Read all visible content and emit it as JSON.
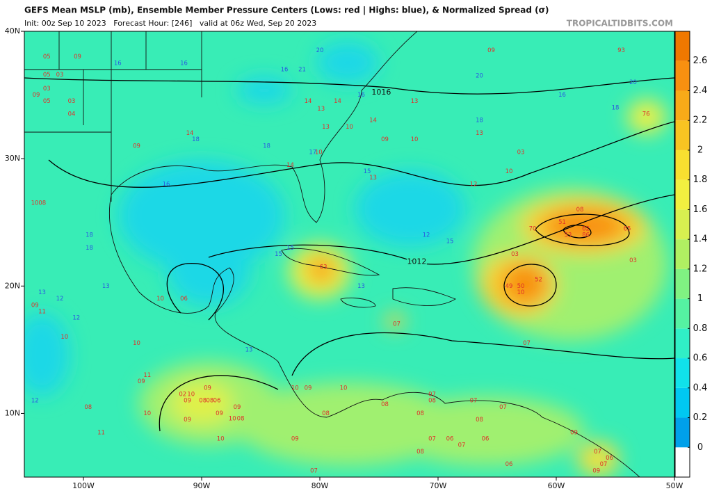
{
  "header": {
    "title": "GEFS Mean MSLP (mb), Ensemble Member Pressure Centers (Lows: red | Highs: blue), & Normalized Spread (σ)",
    "subtitle": "Init: 00z Sep 10 2023   Forecast Hour: [246]   valid at 06z Wed, Sep 20 2023",
    "source": "TROPICALTIDBITS.COM"
  },
  "map": {
    "xlim": [
      -105,
      -50
    ],
    "ylim": [
      5,
      40
    ],
    "xticks": [
      {
        "value": -100,
        "label": "100W"
      },
      {
        "value": -90,
        "label": "90W"
      },
      {
        "value": -80,
        "label": "80W"
      },
      {
        "value": -70,
        "label": "70W"
      },
      {
        "value": -60,
        "label": "60W"
      },
      {
        "value": -50,
        "label": "50W"
      }
    ],
    "yticks": [
      {
        "value": 10,
        "label": "10N"
      },
      {
        "value": 20,
        "label": "20N"
      },
      {
        "value": 30,
        "label": "30N"
      },
      {
        "value": 40,
        "label": "40N"
      }
    ],
    "low_color": "#e0302a",
    "high_color": "#2a5ae0",
    "isobar_labels": [
      {
        "label": "1016",
        "lon": -74.8,
        "lat": 35.2
      },
      {
        "label": "1012",
        "lon": -71.8,
        "lat": 21.9
      }
    ],
    "centers": [
      {
        "label": "05",
        "lon": -103.1,
        "lat": 38.0,
        "type": "low"
      },
      {
        "label": "09",
        "lon": -100.5,
        "lat": 38.0,
        "type": "low"
      },
      {
        "label": "05",
        "lon": -103.1,
        "lat": 36.6,
        "type": "low"
      },
      {
        "label": "03",
        "lon": -102.0,
        "lat": 36.6,
        "type": "low"
      },
      {
        "label": "03",
        "lon": -103.1,
        "lat": 35.5,
        "type": "low"
      },
      {
        "label": "09",
        "lon": -104.0,
        "lat": 35.0,
        "type": "low"
      },
      {
        "label": "05",
        "lon": -103.1,
        "lat": 34.5,
        "type": "low"
      },
      {
        "label": "03",
        "lon": -101.0,
        "lat": 34.5,
        "type": "low"
      },
      {
        "label": "04",
        "lon": -101.0,
        "lat": 33.5,
        "type": "low"
      },
      {
        "label": "09",
        "lon": -95.5,
        "lat": 31.0,
        "type": "low"
      },
      {
        "label": "14",
        "lon": -91.0,
        "lat": 32.0,
        "type": "low"
      },
      {
        "label": "14",
        "lon": -81.0,
        "lat": 34.5,
        "type": "low"
      },
      {
        "label": "13",
        "lon": -79.9,
        "lat": 33.9,
        "type": "low"
      },
      {
        "label": "14",
        "lon": -78.5,
        "lat": 34.5,
        "type": "low"
      },
      {
        "label": "13",
        "lon": -79.5,
        "lat": 32.5,
        "type": "low"
      },
      {
        "label": "10",
        "lon": -77.5,
        "lat": 32.5,
        "type": "low"
      },
      {
        "label": "14",
        "lon": -75.5,
        "lat": 33.0,
        "type": "low"
      },
      {
        "label": "09",
        "lon": -74.5,
        "lat": 31.5,
        "type": "low"
      },
      {
        "label": "10",
        "lon": -72.0,
        "lat": 31.5,
        "type": "low"
      },
      {
        "label": "13",
        "lon": -72.0,
        "lat": 34.5,
        "type": "low"
      },
      {
        "label": "10",
        "lon": -80.1,
        "lat": 30.5,
        "type": "low"
      },
      {
        "label": "14",
        "lon": -82.5,
        "lat": 29.5,
        "type": "low"
      },
      {
        "label": "13",
        "lon": -75.5,
        "lat": 28.5,
        "type": "low"
      },
      {
        "label": "12",
        "lon": -67.0,
        "lat": 28.0,
        "type": "low"
      },
      {
        "label": "10",
        "lon": -64.0,
        "lat": 29.0,
        "type": "low"
      },
      {
        "label": "03",
        "lon": -63.0,
        "lat": 30.5,
        "type": "low"
      },
      {
        "label": "13",
        "lon": -66.5,
        "lat": 32.0,
        "type": "low"
      },
      {
        "label": "09",
        "lon": -65.5,
        "lat": 38.5,
        "type": "low"
      },
      {
        "label": "93",
        "lon": -54.5,
        "lat": 38.5,
        "type": "low"
      },
      {
        "label": "76",
        "lon": -52.4,
        "lat": 33.5,
        "type": "low"
      },
      {
        "label": "08",
        "lon": -58.0,
        "lat": 26.0,
        "type": "low"
      },
      {
        "label": "51",
        "lon": -59.5,
        "lat": 25.0,
        "type": "low"
      },
      {
        "label": "62",
        "lon": -57.5,
        "lat": 24.5,
        "type": "low"
      },
      {
        "label": "86",
        "lon": -57.5,
        "lat": 24.0,
        "type": "low"
      },
      {
        "label": "53",
        "lon": -59.0,
        "lat": 24.0,
        "type": "low"
      },
      {
        "label": "65",
        "lon": -54.0,
        "lat": 24.5,
        "type": "low"
      },
      {
        "label": "70",
        "lon": -62.0,
        "lat": 24.5,
        "type": "low"
      },
      {
        "label": "03",
        "lon": -63.5,
        "lat": 22.5,
        "type": "low"
      },
      {
        "label": "03",
        "lon": -53.5,
        "lat": 22.0,
        "type": "low"
      },
      {
        "label": "52",
        "lon": -61.5,
        "lat": 20.5,
        "type": "low"
      },
      {
        "label": "49",
        "lon": -64.0,
        "lat": 20.0,
        "type": "low"
      },
      {
        "label": "50",
        "lon": -63.0,
        "lat": 20.0,
        "type": "low"
      },
      {
        "label": "10",
        "lon": -63.0,
        "lat": 19.5,
        "type": "low"
      },
      {
        "label": "07",
        "lon": -62.5,
        "lat": 15.5,
        "type": "low"
      },
      {
        "label": "63",
        "lon": -79.7,
        "lat": 21.5,
        "type": "low"
      },
      {
        "label": "07",
        "lon": -73.5,
        "lat": 17.0,
        "type": "low"
      },
      {
        "label": "10",
        "lon": -93.5,
        "lat": 19.0,
        "type": "low"
      },
      {
        "label": "06",
        "lon": -91.5,
        "lat": 19.0,
        "type": "low"
      },
      {
        "label": "09",
        "lon": -104.1,
        "lat": 18.5,
        "type": "low"
      },
      {
        "label": "11",
        "lon": -103.5,
        "lat": 18.0,
        "type": "low"
      },
      {
        "label": "10",
        "lon": -101.6,
        "lat": 16.0,
        "type": "low"
      },
      {
        "label": "10",
        "lon": -95.5,
        "lat": 15.5,
        "type": "low"
      },
      {
        "label": "11",
        "lon": -94.6,
        "lat": 13.0,
        "type": "low"
      },
      {
        "label": "09",
        "lon": -95.1,
        "lat": 12.5,
        "type": "low"
      },
      {
        "label": "09",
        "lon": -89.5,
        "lat": 12.0,
        "type": "low"
      },
      {
        "label": "02",
        "lon": -91.6,
        "lat": 11.5,
        "type": "low"
      },
      {
        "label": "10",
        "lon": -90.9,
        "lat": 11.5,
        "type": "low"
      },
      {
        "label": "09",
        "lon": -91.2,
        "lat": 11.0,
        "type": "low"
      },
      {
        "label": "08",
        "lon": -89.9,
        "lat": 11.0,
        "type": "low"
      },
      {
        "label": "08",
        "lon": -89.3,
        "lat": 11.0,
        "type": "low"
      },
      {
        "label": "06",
        "lon": -88.7,
        "lat": 11.0,
        "type": "low"
      },
      {
        "label": "08",
        "lon": -99.6,
        "lat": 10.5,
        "type": "low"
      },
      {
        "label": "09",
        "lon": -91.2,
        "lat": 9.5,
        "type": "low"
      },
      {
        "label": "10",
        "lon": -94.6,
        "lat": 10.0,
        "type": "low"
      },
      {
        "label": "09",
        "lon": -88.5,
        "lat": 10.0,
        "type": "low"
      },
      {
        "label": "09",
        "lon": -87.0,
        "lat": 10.5,
        "type": "low"
      },
      {
        "label": "10",
        "lon": -87.4,
        "lat": 9.6,
        "type": "low"
      },
      {
        "label": "08",
        "lon": -86.7,
        "lat": 9.6,
        "type": "low"
      },
      {
        "label": "10",
        "lon": -88.4,
        "lat": 8.0,
        "type": "low"
      },
      {
        "label": "11",
        "lon": -98.5,
        "lat": 8.5,
        "type": "low"
      },
      {
        "label": "09",
        "lon": -81.0,
        "lat": 12.0,
        "type": "low"
      },
      {
        "label": "10",
        "lon": -82.1,
        "lat": 12.0,
        "type": "low"
      },
      {
        "label": "10",
        "lon": -78.0,
        "lat": 12.0,
        "type": "low"
      },
      {
        "label": "08",
        "lon": -79.5,
        "lat": 10.0,
        "type": "low"
      },
      {
        "label": "09",
        "lon": -82.1,
        "lat": 8.0,
        "type": "low"
      },
      {
        "label": "07",
        "lon": -80.5,
        "lat": 5.5,
        "type": "low"
      },
      {
        "label": "08",
        "lon": -74.5,
        "lat": 10.7,
        "type": "low"
      },
      {
        "label": "07",
        "lon": -70.5,
        "lat": 11.5,
        "type": "low"
      },
      {
        "label": "08",
        "lon": -70.5,
        "lat": 11.0,
        "type": "low"
      },
      {
        "label": "08",
        "lon": -71.5,
        "lat": 10.0,
        "type": "low"
      },
      {
        "label": "07",
        "lon": -67.0,
        "lat": 11.0,
        "type": "low"
      },
      {
        "label": "08",
        "lon": -66.5,
        "lat": 9.5,
        "type": "low"
      },
      {
        "label": "07",
        "lon": -64.5,
        "lat": 10.5,
        "type": "low"
      },
      {
        "label": "07",
        "lon": -70.5,
        "lat": 8.0,
        "type": "low"
      },
      {
        "label": "06",
        "lon": -69.0,
        "lat": 8.0,
        "type": "low"
      },
      {
        "label": "07",
        "lon": -68.0,
        "lat": 7.5,
        "type": "low"
      },
      {
        "label": "06",
        "lon": -66.0,
        "lat": 8.0,
        "type": "low"
      },
      {
        "label": "08",
        "lon": -71.5,
        "lat": 7.0,
        "type": "low"
      },
      {
        "label": "06",
        "lon": -64.0,
        "lat": 6.0,
        "type": "low"
      },
      {
        "label": "09",
        "lon": -58.5,
        "lat": 8.5,
        "type": "low"
      },
      {
        "label": "07",
        "lon": -56.5,
        "lat": 7.0,
        "type": "low"
      },
      {
        "label": "06",
        "lon": -55.5,
        "lat": 6.5,
        "type": "low"
      },
      {
        "label": "09",
        "lon": -56.6,
        "lat": 5.5,
        "type": "low"
      },
      {
        "label": "07",
        "lon": -56.0,
        "lat": 6.0,
        "type": "low"
      },
      {
        "label": "1008",
        "lon": -103.8,
        "lat": 26.5,
        "type": "low"
      },
      {
        "label": "16",
        "lon": -97.1,
        "lat": 37.5,
        "type": "high"
      },
      {
        "label": "16",
        "lon": -91.5,
        "lat": 37.5,
        "type": "high"
      },
      {
        "label": "20",
        "lon": -80.0,
        "lat": 38.5,
        "type": "high"
      },
      {
        "label": "21",
        "lon": -81.5,
        "lat": 37.0,
        "type": "high"
      },
      {
        "label": "16",
        "lon": -83.0,
        "lat": 37.0,
        "type": "high"
      },
      {
        "label": "16",
        "lon": -76.5,
        "lat": 35.0,
        "type": "high"
      },
      {
        "label": "18",
        "lon": -90.5,
        "lat": 31.5,
        "type": "high"
      },
      {
        "label": "18",
        "lon": -84.5,
        "lat": 31.0,
        "type": "high"
      },
      {
        "label": "17",
        "lon": -80.6,
        "lat": 30.5,
        "type": "high"
      },
      {
        "label": "16",
        "lon": -93.0,
        "lat": 28.0,
        "type": "high"
      },
      {
        "label": "15",
        "lon": -76.0,
        "lat": 29.0,
        "type": "high"
      },
      {
        "label": "20",
        "lon": -66.5,
        "lat": 36.5,
        "type": "high"
      },
      {
        "label": "16",
        "lon": -59.5,
        "lat": 35.0,
        "type": "high"
      },
      {
        "label": "20",
        "lon": -53.5,
        "lat": 36.0,
        "type": "high"
      },
      {
        "label": "18",
        "lon": -55.0,
        "lat": 34.0,
        "type": "high"
      },
      {
        "label": "18",
        "lon": -66.5,
        "lat": 33.0,
        "type": "high"
      },
      {
        "label": "12",
        "lon": -71.0,
        "lat": 24.0,
        "type": "high"
      },
      {
        "label": "15",
        "lon": -69.0,
        "lat": 23.5,
        "type": "high"
      },
      {
        "label": "18",
        "lon": -99.5,
        "lat": 24.0,
        "type": "high"
      },
      {
        "label": "18",
        "lon": -99.5,
        "lat": 23.0,
        "type": "high"
      },
      {
        "label": "13",
        "lon": -98.1,
        "lat": 20.0,
        "type": "high"
      },
      {
        "label": "13",
        "lon": -103.5,
        "lat": 19.5,
        "type": "high"
      },
      {
        "label": "12",
        "lon": -102.0,
        "lat": 19.0,
        "type": "high"
      },
      {
        "label": "12",
        "lon": -100.6,
        "lat": 17.5,
        "type": "high"
      },
      {
        "label": "13",
        "lon": -86.0,
        "lat": 15.0,
        "type": "high"
      },
      {
        "label": "12",
        "lon": -104.1,
        "lat": 11.0,
        "type": "high"
      },
      {
        "label": "15",
        "lon": -82.5,
        "lat": 23.0,
        "type": "high"
      },
      {
        "label": "15",
        "lon": -83.5,
        "lat": 22.5,
        "type": "high"
      },
      {
        "label": "13",
        "lon": -76.5,
        "lat": 20.0,
        "type": "high"
      }
    ]
  },
  "colorbar": {
    "lim": [
      -0.2,
      2.8
    ],
    "ticks": [
      0,
      0.2,
      0.4,
      0.6,
      0.8,
      1,
      1.2,
      1.4,
      1.6,
      1.8,
      2,
      2.2,
      2.4,
      2.6
    ],
    "colors": [
      "#ffffff",
      "#00a0ea",
      "#00c8f2",
      "#10e2ea",
      "#30efc6",
      "#55f2a2",
      "#80f282",
      "#b0f062",
      "#d8f050",
      "#f2f040",
      "#f8e030",
      "#f8c422",
      "#f8aa18",
      "#f89010",
      "#f07800"
    ]
  }
}
